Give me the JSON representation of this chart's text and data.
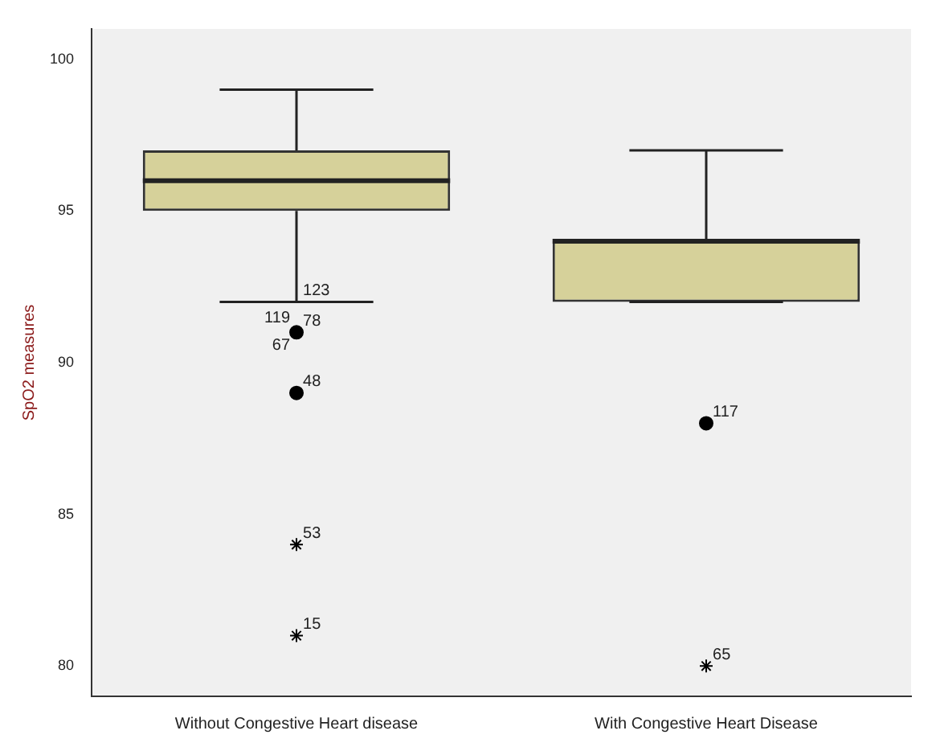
{
  "chart_data": {
    "type": "box",
    "ylabel": "SpO2 measures",
    "categories": [
      "Without Congestive Heart disease",
      "With Congestive Heart Disease"
    ],
    "color": "#d6d19a",
    "boxes": [
      {
        "low": 92,
        "q1": 95,
        "median": 96,
        "q3": 97,
        "high": 99
      },
      {
        "low": 92,
        "q1": 92,
        "median": 94,
        "q3": 94,
        "high": 97
      }
    ],
    "series": [
      {
        "type": "scatter",
        "marker": "circle",
        "color": "#000000",
        "x": [
          "Without Congestive Heart disease",
          "Without Congestive Heart disease",
          "With Congestive Heart Disease"
        ],
        "values": [
          91,
          89,
          88
        ]
      },
      {
        "type": "scatter",
        "marker": "cross",
        "color": "#000000",
        "x": [
          "Without Congestive Heart disease",
          "Without Congestive Heart disease",
          "With Congestive Heart Disease"
        ],
        "values": [
          84,
          81,
          80
        ]
      }
    ],
    "annotations": [
      {
        "text": "123",
        "x": "Without Congestive Heart disease",
        "y": 92
      },
      {
        "text": "78",
        "x": "Without Congestive Heart disease",
        "y": 91
      },
      {
        "text": "119",
        "x": "Without Congestive Heart disease",
        "y": 91
      },
      {
        "text": "67",
        "x": "Without Congestive Heart disease",
        "y": 91
      },
      {
        "text": "48",
        "x": "Without Congestive Heart disease",
        "y": 89
      },
      {
        "text": "53",
        "x": "Without Congestive Heart disease",
        "y": 84
      },
      {
        "text": "15",
        "x": "Without Congestive Heart disease",
        "y": 81
      },
      {
        "text": "117",
        "x": "With Congestive Heart Disease",
        "y": 88
      },
      {
        "text": "65",
        "x": "With Congestive Heart Disease",
        "y": 80
      }
    ],
    "ylim": [
      79,
      101
    ],
    "yticks": [
      80,
      85,
      90,
      95,
      100
    ],
    "grid": false,
    "legend": false
  }
}
